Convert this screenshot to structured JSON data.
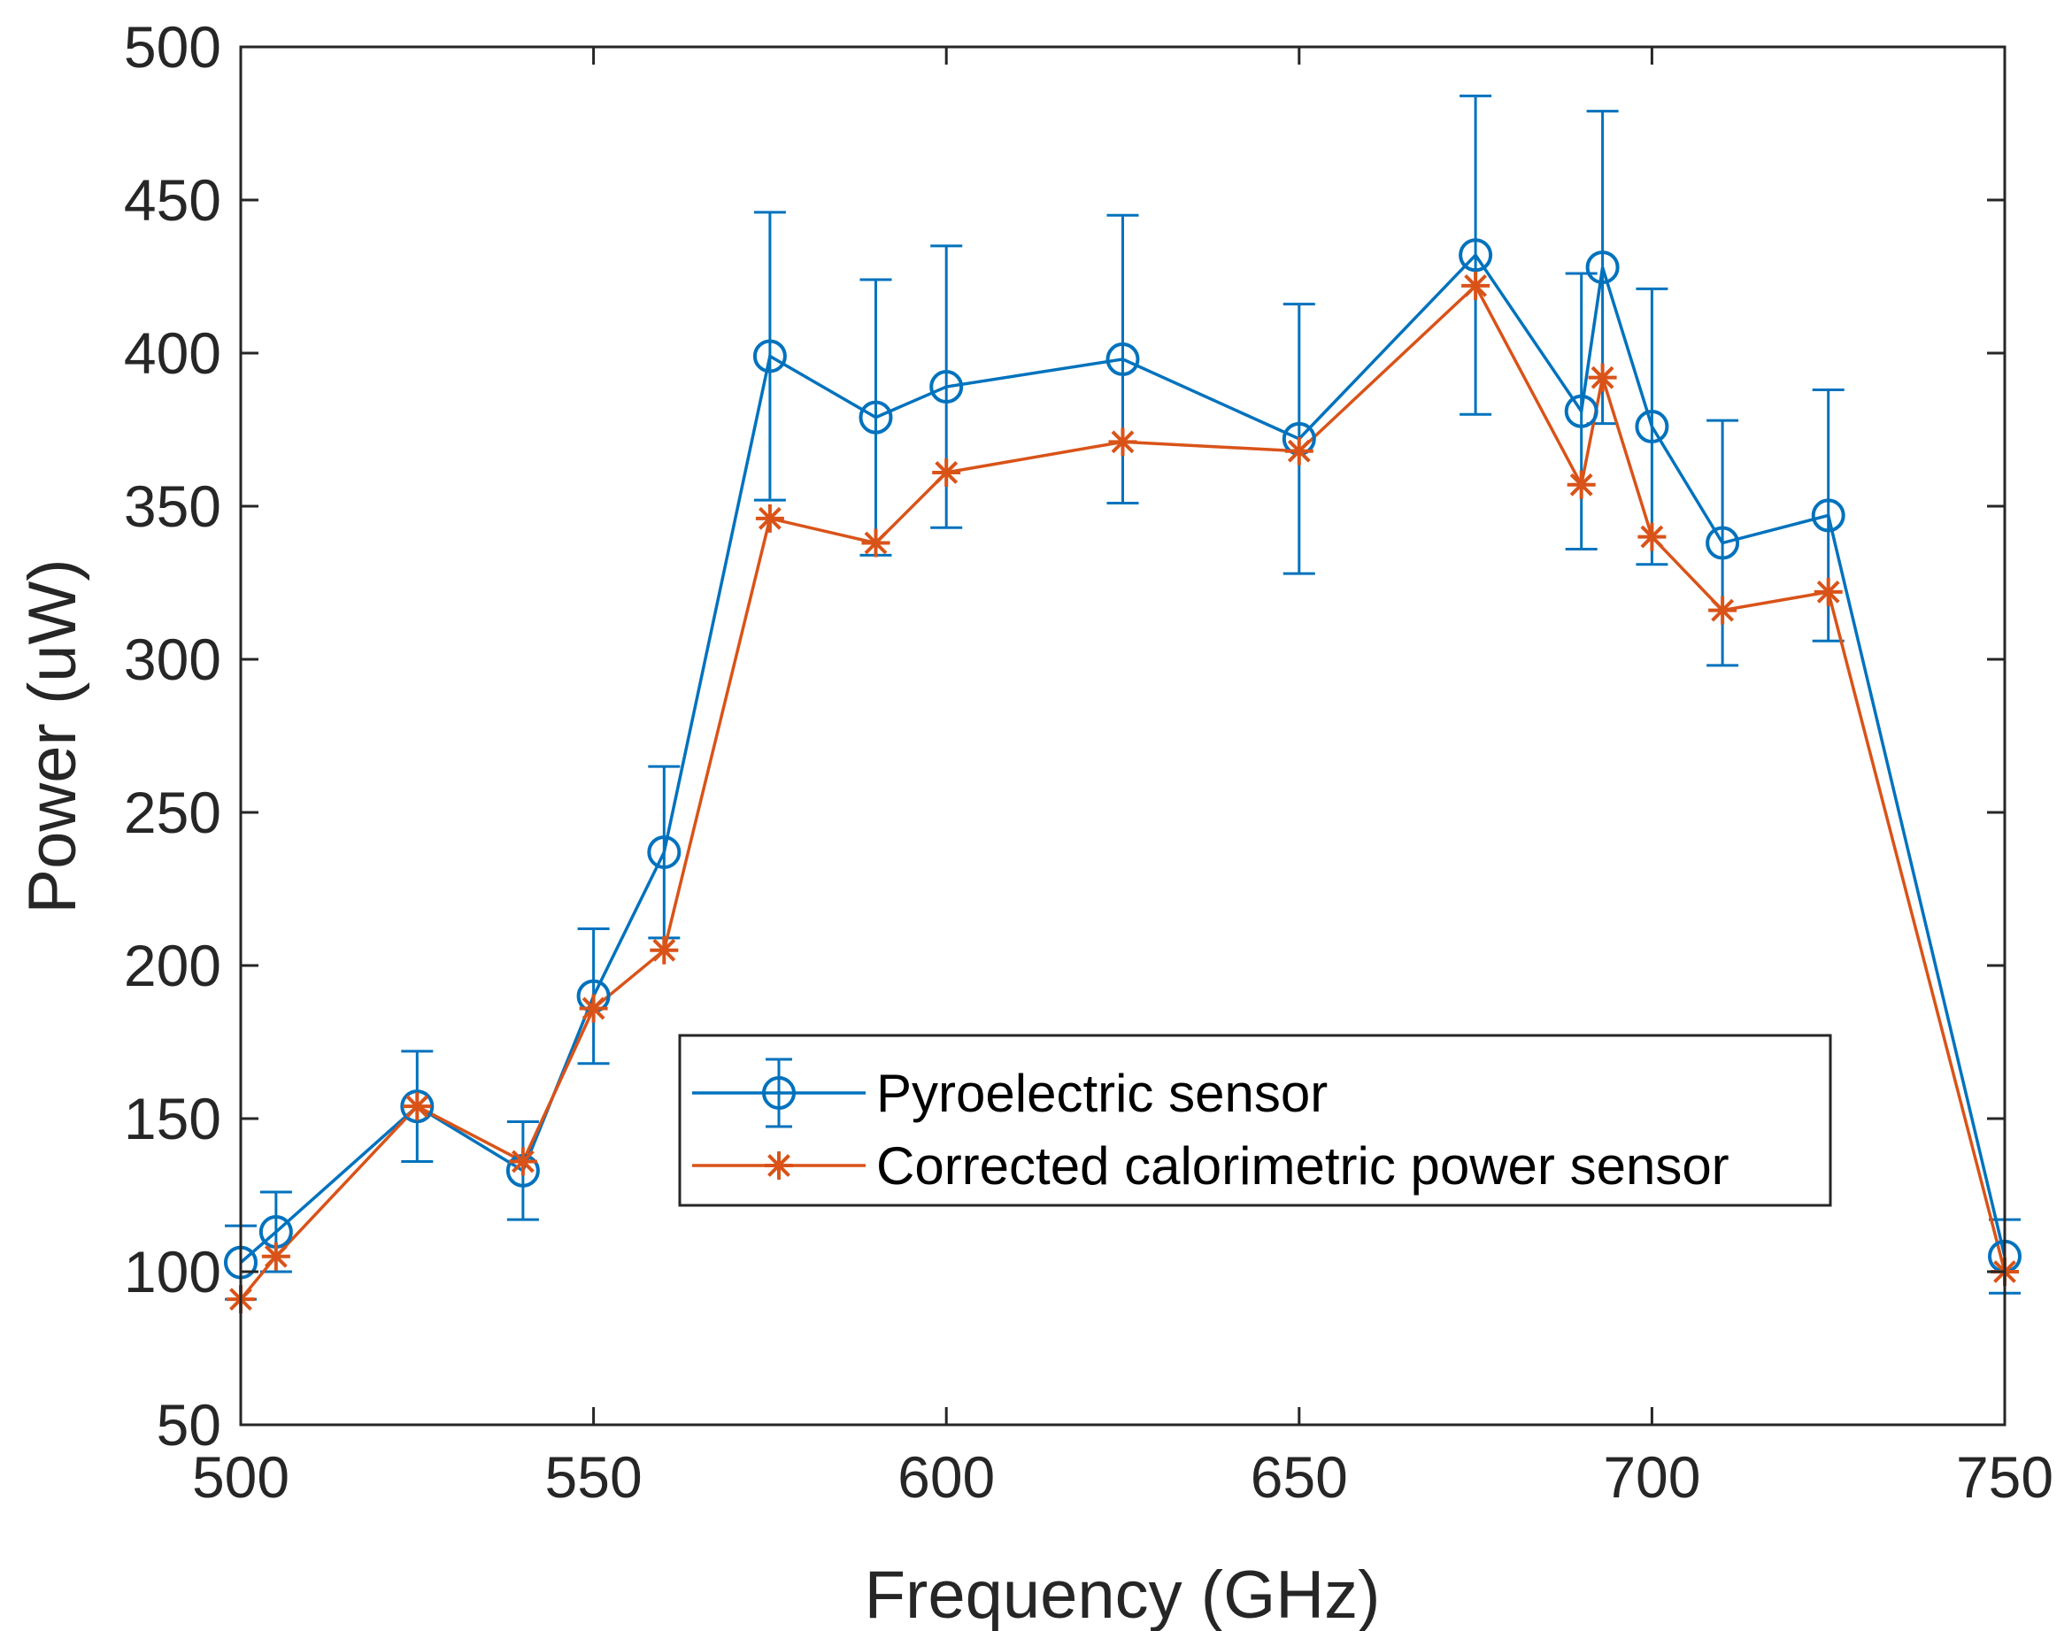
{
  "chart_data": {
    "type": "line",
    "title": "",
    "xlabel": "Frequency (GHz)",
    "ylabel": "Power (uW)",
    "xlim": [
      500,
      750
    ],
    "ylim": [
      50,
      500
    ],
    "xticks": [
      500,
      550,
      600,
      650,
      700,
      750
    ],
    "yticks": [
      50,
      100,
      150,
      200,
      250,
      300,
      350,
      400,
      450,
      500
    ],
    "grid": false,
    "legend_position": "center-right",
    "x": [
      500,
      505,
      525,
      540,
      550,
      560,
      575,
      590,
      600,
      625,
      650,
      675,
      690,
      693,
      700,
      710,
      725,
      750
    ],
    "series": [
      {
        "name": "Pyroelectric sensor",
        "color": "#0072bd",
        "marker": "circle",
        "values": [
          103,
          113,
          154,
          133,
          190,
          237,
          399,
          379,
          389,
          398,
          372,
          432,
          381,
          428,
          376,
          338,
          347,
          105
        ],
        "error": [
          12,
          13,
          18,
          16,
          22,
          28,
          47,
          45,
          46,
          47,
          44,
          52,
          45,
          51,
          45,
          40,
          41,
          12
        ]
      },
      {
        "name": "Corrected calorimetric power sensor",
        "color": "#d95319",
        "marker": "asterisk",
        "values": [
          91,
          105,
          154,
          136,
          186,
          205,
          346,
          338,
          361,
          371,
          368,
          422,
          357,
          392,
          340,
          316,
          322,
          100
        ]
      }
    ]
  }
}
